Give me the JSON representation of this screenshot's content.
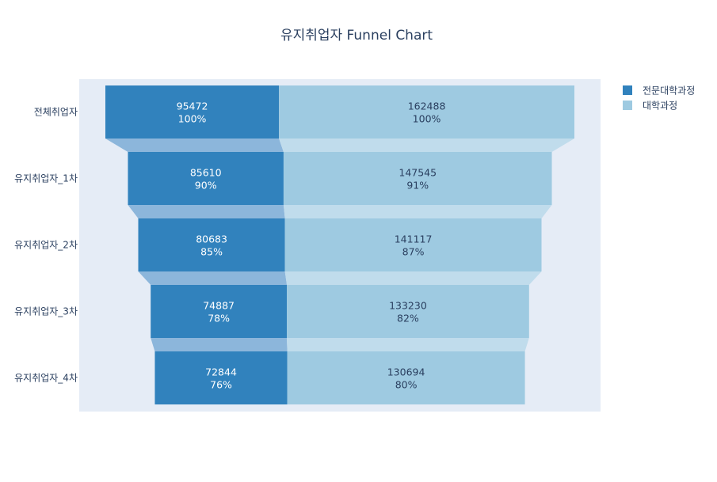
{
  "chart_data": {
    "type": "funnel",
    "title": "유지취업자 Funnel Chart",
    "stages": [
      "전체취업자",
      "유지취업자_1차",
      "유지취업자_2차",
      "유지취업자_3차",
      "유지취업자_4차"
    ],
    "series": [
      {
        "name": "전문대학과정",
        "values": [
          95472,
          85610,
          80683,
          74887,
          72844
        ],
        "percent_labels": [
          "100%",
          "90%",
          "85%",
          "78%",
          "76%"
        ],
        "color": "#3182bd",
        "connector_color": "#8cb6db",
        "label_color": "#ffffff"
      },
      {
        "name": "대학과정",
        "values": [
          162488,
          147545,
          141117,
          133230,
          130694
        ],
        "percent_labels": [
          "100%",
          "91%",
          "87%",
          "82%",
          "80%"
        ],
        "color": "#9ecae1",
        "connector_color": "#c0dcec",
        "label_color": "#2a3f5f"
      }
    ],
    "legend_position": "top-right",
    "plot_background": "#e5ecf6"
  }
}
